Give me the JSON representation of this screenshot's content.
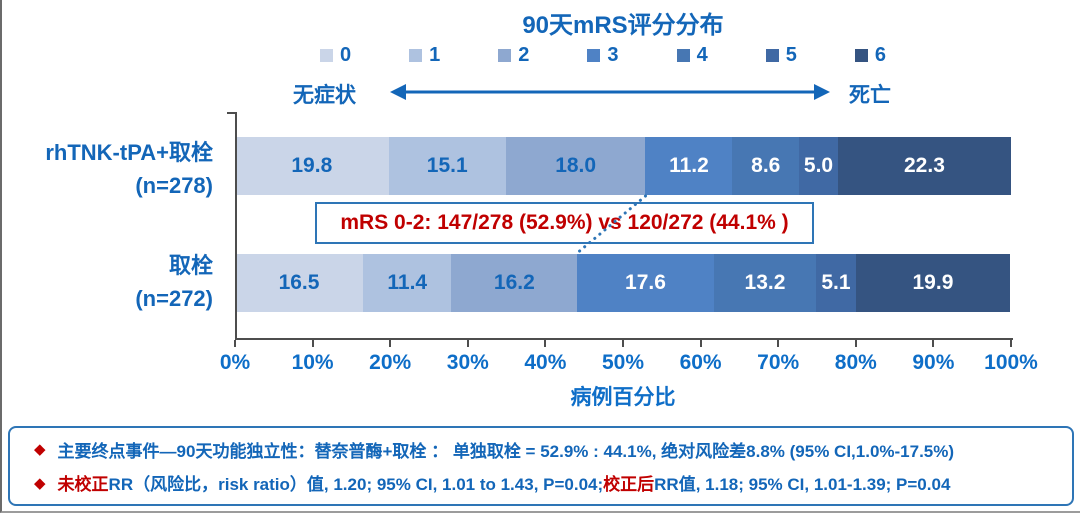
{
  "title": "90天mRS评分分布",
  "legend": [
    {
      "label": "0",
      "color": "#CAD5E8"
    },
    {
      "label": "1",
      "color": "#AEC2E0"
    },
    {
      "label": "2",
      "color": "#8EA8D0"
    },
    {
      "label": "3",
      "color": "#4F82C5"
    },
    {
      "label": "4",
      "color": "#4777B3"
    },
    {
      "label": "5",
      "color": "#4069A4"
    },
    {
      "label": "6",
      "color": "#355481"
    }
  ],
  "scale": {
    "left": "无症状",
    "right": "死亡"
  },
  "chart_data": {
    "type": "bar",
    "orientation": "horizontal",
    "stacked": true,
    "unit": "percent",
    "title": "90天mRS评分分布",
    "categories": [
      "rhTNK-tPA+取栓 (n=278)",
      "取栓 (n=272)"
    ],
    "series": [
      {
        "name": "mRS 0",
        "color": "#CAD5E8",
        "values": [
          19.8,
          16.5
        ]
      },
      {
        "name": "mRS 1",
        "color": "#AEC2E0",
        "values": [
          15.1,
          11.4
        ]
      },
      {
        "name": "mRS 2",
        "color": "#8EA8D0",
        "values": [
          18.0,
          16.2
        ]
      },
      {
        "name": "mRS 3",
        "color": "#4F82C5",
        "values": [
          11.2,
          17.6
        ]
      },
      {
        "name": "mRS 4",
        "color": "#4777B3",
        "values": [
          8.6,
          13.2
        ]
      },
      {
        "name": "mRS 5",
        "color": "#4069A4",
        "values": [
          5.0,
          5.1
        ]
      },
      {
        "name": "mRS 6",
        "color": "#355481",
        "values": [
          22.3,
          19.9
        ]
      }
    ],
    "xlabel": "病例百分比",
    "xlim": [
      0,
      100
    ],
    "x_ticks": [
      "0%",
      "10%",
      "20%",
      "30%",
      "40%",
      "50%",
      "60%",
      "70%",
      "80%",
      "90%",
      "100%"
    ],
    "legend_position": "top",
    "grid": false
  },
  "rows": [
    {
      "label": "rhTNK-tPA+取栓",
      "sub": "(n=278)",
      "values": [
        "19.8",
        "15.1",
        "18.0",
        "11.2",
        "8.6",
        "5.0",
        "22.3"
      ]
    },
    {
      "label": "取栓",
      "sub": "(n=272)",
      "values": [
        "16.5",
        "11.4",
        "16.2",
        "17.6",
        "13.2",
        "5.1",
        "19.9"
      ]
    }
  ],
  "annotation": "mRS 0-2: 147/278 (52.9%) vs 120/272 (44.1% )",
  "axis_label": "病例百分比",
  "footer_lines": [
    {
      "bullet": "◆",
      "parts": [
        {
          "text": "主要终点事件—90天功能独立性：替奈普酶+取栓 ： 单独取栓 = 52.9% : 44.1%, 绝对风险差8.8% (95% CI,1.0%-17.5%)",
          "red": false
        }
      ]
    },
    {
      "bullet": "◆",
      "parts": [
        {
          "text": "未校正",
          "red": true
        },
        {
          "text": "RR（风险比，risk ratio）值, 1.20; 95% CI, 1.01 to 1.43, P=0.04; ",
          "red": false
        },
        {
          "text": "校正后",
          "red": true
        },
        {
          "text": "RR值, 1.18; 95% CI, 1.01-1.39; P=0.04",
          "red": false
        }
      ]
    }
  ],
  "colors": {
    "text_blue": "#1366B8",
    "tick_blue": "#0E6EC8",
    "accent_red": "#C00000",
    "box_border_blue": "#2E75B6",
    "axis_gray": "#4d4d4d"
  }
}
